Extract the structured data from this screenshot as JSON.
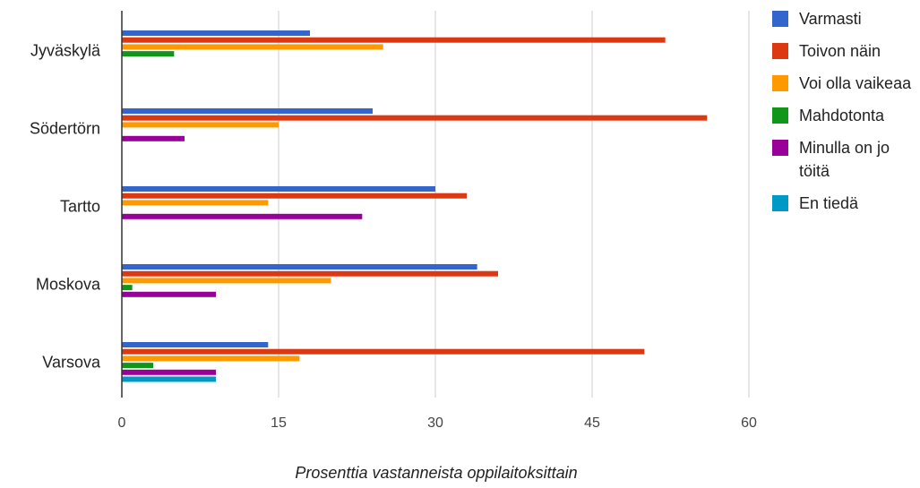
{
  "chart_data": {
    "type": "bar",
    "orientation": "horizontal",
    "categories": [
      "Jyväskylä",
      "Södertörn",
      "Tartto",
      "Moskova",
      "Varsova"
    ],
    "series": [
      {
        "name": "Varmasti",
        "color": "#3366cc",
        "values": [
          18,
          24,
          30,
          34,
          14
        ]
      },
      {
        "name": "Toivon näin",
        "color": "#dc3912",
        "values": [
          52,
          56,
          33,
          36,
          50
        ]
      },
      {
        "name": "Voi olla vaikeaa",
        "color": "#ff9900",
        "values": [
          25,
          15,
          14,
          20,
          17
        ]
      },
      {
        "name": "Mahdotonta",
        "color": "#109618",
        "values": [
          5,
          0,
          0,
          1,
          3
        ]
      },
      {
        "name": "Minulla on jo töitä",
        "color": "#990099",
        "values": [
          0,
          6,
          23,
          9,
          9
        ]
      },
      {
        "name": "En tiedä",
        "color": "#0099c6",
        "values": [
          0,
          0,
          0,
          0,
          9
        ]
      }
    ],
    "xticks": [
      "0",
      "15",
      "30",
      "45",
      "60"
    ],
    "xlim": [
      0,
      60
    ],
    "xlabel": "Prosenttia vastanneista oppilaitoksittain",
    "ylabel": "",
    "grid": true,
    "legend_position": "right"
  }
}
